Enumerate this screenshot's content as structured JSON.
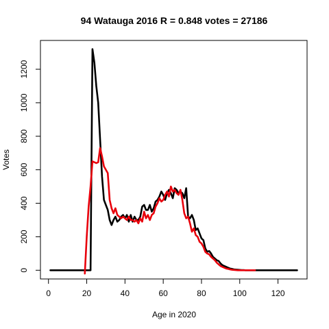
{
  "chart_data": {
    "type": "line",
    "title": "94 Watauga 2016 R = 0.848 votes = 27186",
    "xlabel": "Age in 2020",
    "ylabel": "Votes",
    "xlim": [
      -4.2,
      135.2
    ],
    "ylim": [
      -52,
      1372
    ],
    "x_ticks": [
      0,
      20,
      40,
      60,
      80,
      100,
      120
    ],
    "y_ticks": [
      0,
      200,
      400,
      600,
      800,
      1000,
      1200
    ],
    "grid": false,
    "legend": "none",
    "series": [
      {
        "color": "#000000",
        "x": [
          1,
          22,
          23,
          24,
          25,
          26,
          27,
          28,
          29,
          30,
          31,
          32,
          33,
          34,
          35,
          36,
          37,
          38,
          39,
          40,
          41,
          42,
          43,
          44,
          45,
          46,
          47,
          48,
          49,
          50,
          51,
          52,
          53,
          54,
          55,
          56,
          57,
          58,
          59,
          60,
          61,
          62,
          63,
          64,
          65,
          66,
          67,
          68,
          69,
          70,
          71,
          72,
          73,
          74,
          75,
          76,
          77,
          78,
          79,
          80,
          81,
          82,
          83,
          84,
          85,
          86,
          87,
          88,
          89,
          90,
          91,
          92,
          93,
          94,
          95,
          96,
          97,
          98,
          99,
          100,
          101,
          102,
          103,
          104,
          105,
          106,
          107,
          108,
          130
        ],
        "values": [
          0,
          0,
          1320,
          1240,
          1100,
          1000,
          780,
          560,
          420,
          390,
          360,
          300,
          270,
          300,
          320,
          290,
          300,
          320,
          330,
          310,
          330,
          290,
          330,
          290,
          320,
          300,
          300,
          320,
          380,
          390,
          360,
          360,
          390,
          350,
          370,
          410,
          420,
          440,
          470,
          450,
          420,
          460,
          480,
          460,
          430,
          490,
          480,
          460,
          470,
          460,
          430,
          490,
          320,
          310,
          330,
          300,
          240,
          250,
          220,
          190,
          180,
          130,
          110,
          115,
          100,
          80,
          70,
          60,
          55,
          40,
          30,
          25,
          20,
          15,
          10,
          8,
          5,
          4,
          3,
          2,
          1,
          1,
          0,
          0,
          0,
          0,
          0,
          0,
          0
        ]
      },
      {
        "color": "#e8000b",
        "x": [
          19,
          20,
          21,
          22,
          23,
          24,
          25,
          26,
          27,
          28,
          29,
          30,
          31,
          32,
          33,
          34,
          35,
          36,
          37,
          38,
          39,
          40,
          41,
          42,
          43,
          44,
          45,
          46,
          47,
          48,
          49,
          50,
          51,
          52,
          53,
          54,
          55,
          56,
          57,
          58,
          59,
          60,
          61,
          62,
          63,
          64,
          65,
          66,
          67,
          68,
          69,
          70,
          71,
          72,
          73,
          74,
          75,
          76,
          77,
          78,
          79,
          80,
          81,
          82,
          83,
          84,
          85,
          86,
          87,
          88,
          89,
          90,
          91,
          92,
          93,
          94,
          95,
          96,
          97,
          98,
          99,
          100,
          101,
          102,
          103,
          104,
          105,
          106,
          107,
          108
        ],
        "values": [
          -20,
          200,
          380,
          500,
          650,
          645,
          640,
          645,
          730,
          680,
          620,
          600,
          580,
          420,
          370,
          340,
          370,
          330,
          320,
          310,
          320,
          310,
          300,
          320,
          300,
          300,
          290,
          300,
          280,
          310,
          290,
          350,
          310,
          330,
          300,
          330,
          340,
          380,
          400,
          430,
          410,
          420,
          450,
          470,
          440,
          500,
          470,
          480,
          460,
          450,
          480,
          420,
          340,
          310,
          320,
          280,
          230,
          250,
          210,
          200,
          170,
          160,
          140,
          110,
          100,
          95,
          80,
          70,
          60,
          45,
          35,
          25,
          20,
          15,
          10,
          8,
          5,
          3,
          2,
          1,
          0,
          0,
          0,
          0,
          0,
          0,
          0,
          0,
          0,
          0
        ]
      }
    ]
  }
}
